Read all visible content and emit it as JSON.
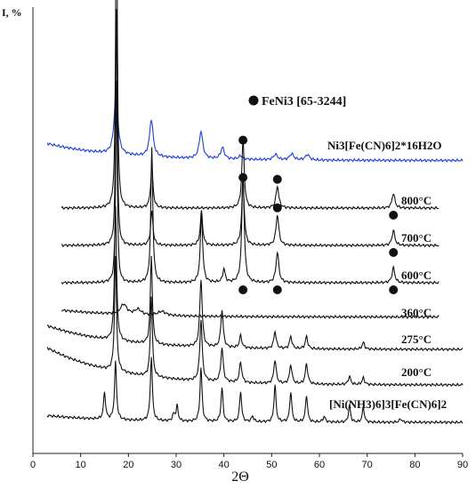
{
  "chart_data": {
    "type": "line",
    "xlabel": "2Θ",
    "ylabel": "I, %",
    "xlim": [
      0,
      90
    ],
    "xticks": [
      0,
      10,
      20,
      30,
      40,
      50,
      60,
      70,
      80,
      90
    ],
    "legend": {
      "marker": "filled-circle",
      "text": "FeNi3 [65-3244]",
      "placement": "top-center"
    },
    "series": [
      {
        "name": "Ni3[Fe(CN)6]2*16H2O",
        "color": "#1f3fd6",
        "x_range": [
          3,
          90
        ],
        "baseline_left": 0.25,
        "baseline_right": 0.02,
        "peaks": [
          [
            17.4,
            0.95,
            0.45
          ],
          [
            24.8,
            0.55,
            0.45
          ],
          [
            35.2,
            0.4,
            0.45
          ],
          [
            39.7,
            0.17,
            0.45
          ],
          [
            43.5,
            0.05,
            0.5
          ],
          [
            50.8,
            0.08,
            0.5
          ],
          [
            54.2,
            0.09,
            0.5
          ],
          [
            57.5,
            0.08,
            0.5
          ]
        ]
      },
      {
        "name": "800°C",
        "color": "#111111",
        "x_range": [
          6,
          85
        ],
        "baseline_left": 0.0,
        "baseline_right": 0.0,
        "peaks": [
          [
            17.5,
            5.0,
            0.2
          ],
          [
            24.9,
            0.6,
            0.3
          ],
          [
            44.0,
            1.0,
            0.3
          ],
          [
            51.2,
            0.32,
            0.35
          ],
          [
            75.5,
            0.22,
            0.35
          ]
        ]
      },
      {
        "name": "700°C",
        "color": "#111111",
        "x_range": [
          6,
          85
        ],
        "baseline_left": 0.0,
        "baseline_right": 0.0,
        "peaks": [
          [
            17.5,
            3.5,
            0.2
          ],
          [
            24.9,
            0.5,
            0.3
          ],
          [
            35.3,
            0.5,
            0.3
          ],
          [
            44.0,
            1.0,
            0.3
          ],
          [
            51.2,
            0.45,
            0.35
          ],
          [
            75.5,
            0.22,
            0.35
          ]
        ]
      },
      {
        "name": "600°C",
        "color": "#111111",
        "x_range": [
          6,
          85
        ],
        "baseline_left": 0.0,
        "baseline_right": 0.0,
        "peaks": [
          [
            17.5,
            3.0,
            0.2
          ],
          [
            24.9,
            2.0,
            0.25
          ],
          [
            35.3,
            1.0,
            0.3
          ],
          [
            40.0,
            0.2,
            0.3
          ],
          [
            44.0,
            1.6,
            0.3
          ],
          [
            51.2,
            0.45,
            0.35
          ],
          [
            75.5,
            0.22,
            0.35
          ]
        ]
      },
      {
        "name": "360°C",
        "color": "#111111",
        "x_range": [
          6,
          85
        ],
        "baseline_left": 0.1,
        "baseline_right": 0.02,
        "peaks": [
          [
            19.0,
            0.15,
            0.8
          ],
          [
            22.0,
            0.08,
            0.8
          ],
          [
            27.0,
            0.06,
            1.0
          ]
        ]
      },
      {
        "name": "275°C",
        "color": "#111111",
        "x_range": [
          3,
          90
        ],
        "baseline_left": 0.35,
        "baseline_right": 0.0,
        "peaks": [
          [
            17.3,
            2.0,
            0.25
          ],
          [
            24.8,
            1.3,
            0.25
          ],
          [
            35.2,
            1.0,
            0.3
          ],
          [
            39.6,
            0.55,
            0.3
          ],
          [
            43.5,
            0.18,
            0.3
          ],
          [
            50.7,
            0.25,
            0.3
          ],
          [
            54.0,
            0.18,
            0.3
          ],
          [
            57.3,
            0.18,
            0.3
          ],
          [
            69.2,
            0.1,
            0.3
          ]
        ]
      },
      {
        "name": "200°C",
        "color": "#111111",
        "x_range": [
          3,
          90
        ],
        "baseline_left": 0.55,
        "baseline_right": 0.0,
        "peaks": [
          [
            17.3,
            1.7,
            0.25
          ],
          [
            24.8,
            1.2,
            0.25
          ],
          [
            35.2,
            0.9,
            0.3
          ],
          [
            39.6,
            0.5,
            0.3
          ],
          [
            43.5,
            0.3,
            0.3
          ],
          [
            50.7,
            0.35,
            0.3
          ],
          [
            54.0,
            0.28,
            0.3
          ],
          [
            57.3,
            0.3,
            0.3
          ],
          [
            66.3,
            0.12,
            0.3
          ],
          [
            69.2,
            0.1,
            0.3
          ]
        ]
      },
      {
        "name": "[Ni(NH3)6]3[Fe(CN)6]2",
        "color": "#111111",
        "x_range": [
          3,
          90
        ],
        "baseline_left": 0.1,
        "baseline_right": 0.0,
        "peaks": [
          [
            15.0,
            0.4,
            0.25
          ],
          [
            17.3,
            0.85,
            0.25
          ],
          [
            24.8,
            0.95,
            0.25
          ],
          [
            29.5,
            0.1,
            0.3
          ],
          [
            30.2,
            0.22,
            0.25
          ],
          [
            35.2,
            0.8,
            0.25
          ],
          [
            39.6,
            0.5,
            0.25
          ],
          [
            43.5,
            0.45,
            0.25
          ],
          [
            46.0,
            0.08,
            0.3
          ],
          [
            50.7,
            0.55,
            0.25
          ],
          [
            54.0,
            0.45,
            0.25
          ],
          [
            57.3,
            0.4,
            0.25
          ],
          [
            61.0,
            0.08,
            0.3
          ],
          [
            66.3,
            0.25,
            0.25
          ],
          [
            69.2,
            0.22,
            0.25
          ],
          [
            77.0,
            0.05,
            0.3
          ]
        ]
      }
    ],
    "annotations": {
      "feni3_markers": [
        {
          "series": "800°C",
          "x": 44.0,
          "where": "above"
        },
        {
          "series": "800°C",
          "x": 51.2,
          "where": "above"
        },
        {
          "series": "800°C",
          "x": 75.5,
          "where": "below"
        },
        {
          "series": "700°C",
          "x": 44.0,
          "where": "above"
        },
        {
          "series": "700°C",
          "x": 51.2,
          "where": "above"
        },
        {
          "series": "700°C",
          "x": 75.5,
          "where": "below"
        },
        {
          "series": "600°C",
          "x": 44.0,
          "where": "below"
        },
        {
          "series": "600°C",
          "x": 51.2,
          "where": "below"
        },
        {
          "series": "600°C",
          "x": 75.5,
          "where": "below"
        }
      ]
    }
  }
}
